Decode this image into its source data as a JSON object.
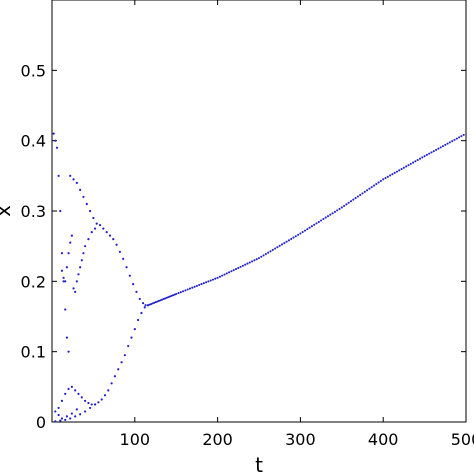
{
  "chart_data": {
    "type": "scatter",
    "title": "",
    "xlabel": "t",
    "ylabel": "x",
    "xlim": [
      0,
      500
    ],
    "ylim": [
      0,
      0.6
    ],
    "xticks": [
      100,
      200,
      300,
      400,
      500
    ],
    "xtick_labels": [
      "100",
      "200",
      "300",
      "400",
      "500"
    ],
    "yticks": [
      0,
      0.1,
      0.2,
      0.3,
      0.4,
      0.5
    ],
    "ytick_labels": [
      "0",
      "0.1",
      "0.2",
      "0.3",
      "0.4",
      "0.5"
    ],
    "grid": false,
    "marker_color": "#1f1fcc",
    "series": [
      {
        "points": [
          [
            2,
            0.41
          ],
          [
            4,
            0.4
          ],
          [
            6,
            0.39
          ],
          [
            8,
            0.35
          ],
          [
            10,
            0.3
          ],
          [
            12,
            0.24
          ],
          [
            14,
            0.2
          ],
          [
            16,
            0.16
          ],
          [
            18,
            0.12
          ],
          [
            20,
            0.1
          ],
          [
            22,
            0.35
          ],
          [
            26,
            0.345
          ],
          [
            30,
            0.34
          ],
          [
            34,
            0.33
          ],
          [
            38,
            0.32
          ],
          [
            42,
            0.31
          ],
          [
            46,
            0.3
          ],
          [
            50,
            0.29
          ],
          [
            54,
            0.282
          ],
          [
            58,
            0.28
          ],
          [
            62,
            0.275
          ],
          [
            66,
            0.27
          ],
          [
            70,
            0.265
          ],
          [
            74,
            0.26
          ],
          [
            78,
            0.252
          ],
          [
            82,
            0.242
          ],
          [
            86,
            0.232
          ],
          [
            90,
            0.22
          ],
          [
            94,
            0.208
          ],
          [
            98,
            0.196
          ],
          [
            102,
            0.185
          ],
          [
            106,
            0.175
          ],
          [
            110,
            0.169
          ],
          [
            113,
            0.166
          ],
          [
            116,
            0.166
          ],
          [
            4,
            0.015
          ],
          [
            8,
            0.02
          ],
          [
            12,
            0.03
          ],
          [
            16,
            0.04
          ],
          [
            20,
            0.047
          ],
          [
            24,
            0.05
          ],
          [
            28,
            0.045
          ],
          [
            32,
            0.04
          ],
          [
            36,
            0.035
          ],
          [
            40,
            0.03
          ],
          [
            44,
            0.027
          ],
          [
            48,
            0.025
          ],
          [
            52,
            0.025
          ],
          [
            56,
            0.028
          ],
          [
            60,
            0.032
          ],
          [
            64,
            0.038
          ],
          [
            68,
            0.045
          ],
          [
            72,
            0.055
          ],
          [
            76,
            0.065
          ],
          [
            80,
            0.075
          ],
          [
            84,
            0.085
          ],
          [
            88,
            0.095
          ],
          [
            92,
            0.108
          ],
          [
            96,
            0.12
          ],
          [
            100,
            0.132
          ],
          [
            104,
            0.145
          ],
          [
            108,
            0.155
          ],
          [
            112,
            0.163
          ],
          [
            4,
            0.001
          ],
          [
            10,
            0.002
          ],
          [
            16,
            0.003
          ],
          [
            22,
            0.005
          ],
          [
            28,
            0.008
          ],
          [
            34,
            0.011
          ],
          [
            40,
            0.015
          ],
          [
            46,
            0.02
          ],
          [
            52,
            0.025
          ],
          [
            16,
            0.2
          ],
          [
            18,
            0.22
          ],
          [
            20,
            0.24
          ],
          [
            22,
            0.255
          ],
          [
            24,
            0.265
          ],
          [
            12,
            0.215
          ],
          [
            14,
            0.205
          ],
          [
            8,
            0.01
          ],
          [
            12,
            0.005
          ],
          [
            18,
            0.008
          ],
          [
            24,
            0.012
          ],
          [
            30,
            0.018
          ],
          [
            26,
            0.19
          ],
          [
            28,
            0.185
          ],
          [
            30,
            0.2
          ],
          [
            32,
            0.21
          ],
          [
            34,
            0.22
          ],
          [
            36,
            0.23
          ],
          [
            38,
            0.24
          ],
          [
            40,
            0.25
          ],
          [
            44,
            0.26
          ],
          [
            48,
            0.27
          ],
          [
            52,
            0.275
          ]
        ]
      },
      {
        "line_points": [
          [
            116,
            0.166
          ],
          [
            150,
            0.182
          ],
          [
            200,
            0.205
          ],
          [
            250,
            0.233
          ],
          [
            300,
            0.268
          ],
          [
            350,
            0.305
          ],
          [
            400,
            0.345
          ],
          [
            450,
            0.378
          ],
          [
            500,
            0.41
          ]
        ]
      }
    ]
  }
}
